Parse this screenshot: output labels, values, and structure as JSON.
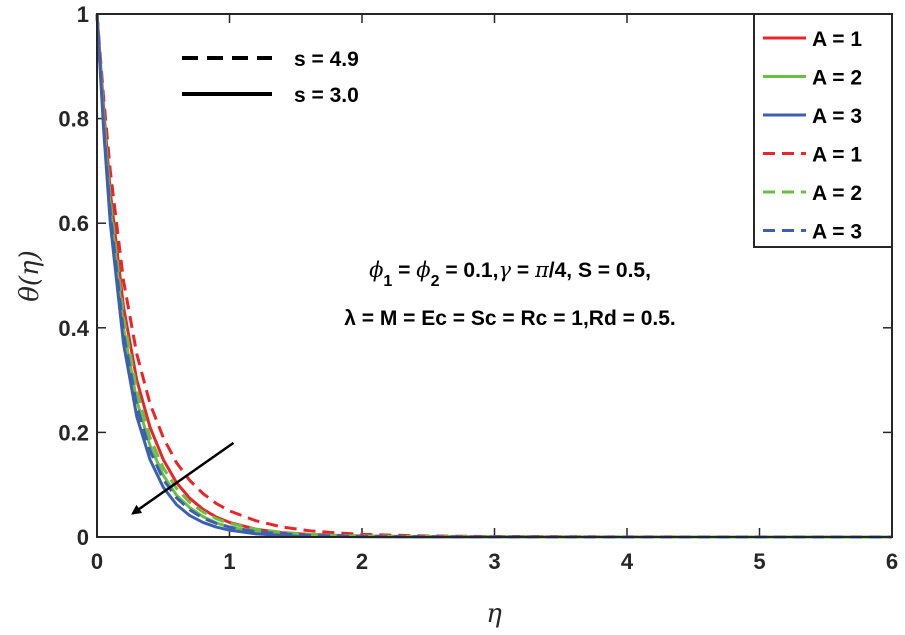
{
  "chart_data": {
    "type": "line",
    "xlabel": "η",
    "ylabel": "θ(η)",
    "xlim": [
      0,
      6
    ],
    "ylim": [
      0,
      1
    ],
    "xticks": [
      "0",
      "1",
      "2",
      "3",
      "4",
      "5",
      "6"
    ],
    "yticks": [
      "0",
      "0.2",
      "0.4",
      "0.6",
      "0.8",
      "1"
    ],
    "grid": false,
    "legend_position": "top-right",
    "colors": {
      "A1": "#e8262a",
      "A2": "#6cbd45",
      "A3": "#3d5fb2"
    },
    "series": [
      {
        "name": "A = 1",
        "style": "solid",
        "color": "#e8262a",
        "x": [
          0,
          0.05,
          0.1,
          0.2,
          0.3,
          0.4,
          0.5,
          0.6,
          0.7,
          0.8,
          0.9,
          1.0,
          1.2,
          1.4,
          1.6,
          1.8,
          2.0,
          2.5,
          3.0,
          4.0,
          5.0,
          6.0
        ],
        "y": [
          1.0,
          0.82,
          0.66,
          0.44,
          0.3,
          0.21,
          0.148,
          0.104,
          0.074,
          0.053,
          0.038,
          0.028,
          0.015,
          0.008,
          0.005,
          0.003,
          0.002,
          0.0005,
          0.0002,
          0,
          0,
          0
        ]
      },
      {
        "name": "A = 2",
        "style": "solid",
        "color": "#6cbd45",
        "x": [
          0,
          0.05,
          0.1,
          0.2,
          0.3,
          0.4,
          0.5,
          0.6,
          0.7,
          0.8,
          0.9,
          1.0,
          1.2,
          1.4,
          1.6,
          1.8,
          2.0,
          2.5,
          3.0,
          4.0,
          5.0,
          6.0
        ],
        "y": [
          1.0,
          0.8,
          0.63,
          0.4,
          0.26,
          0.175,
          0.118,
          0.08,
          0.056,
          0.039,
          0.027,
          0.019,
          0.01,
          0.005,
          0.003,
          0.002,
          0.001,
          0.0003,
          0.0001,
          0,
          0,
          0
        ]
      },
      {
        "name": "A = 3",
        "style": "solid",
        "color": "#3d5fb2",
        "x": [
          0,
          0.05,
          0.1,
          0.2,
          0.3,
          0.4,
          0.5,
          0.6,
          0.7,
          0.8,
          0.9,
          1.0,
          1.2,
          1.4,
          1.6,
          1.8,
          2.0,
          2.5,
          3.0,
          4.0,
          5.0,
          6.0
        ],
        "y": [
          1.0,
          0.78,
          0.6,
          0.37,
          0.23,
          0.148,
          0.095,
          0.062,
          0.041,
          0.028,
          0.019,
          0.013,
          0.006,
          0.003,
          0.002,
          0.001,
          0.0005,
          0.0001,
          0,
          0,
          0,
          0
        ]
      },
      {
        "name": "A = 1",
        "style": "dashed",
        "color": "#e8262a",
        "x": [
          0,
          0.05,
          0.1,
          0.2,
          0.3,
          0.4,
          0.5,
          0.6,
          0.7,
          0.8,
          0.9,
          1.0,
          1.2,
          1.4,
          1.6,
          1.8,
          2.0,
          2.5,
          3.0,
          4.0,
          5.0,
          6.0
        ],
        "y": [
          1.0,
          0.84,
          0.7,
          0.49,
          0.35,
          0.255,
          0.19,
          0.142,
          0.108,
          0.083,
          0.064,
          0.05,
          0.031,
          0.019,
          0.012,
          0.008,
          0.005,
          0.002,
          0.001,
          0.0001,
          0,
          0
        ]
      },
      {
        "name": "A = 2",
        "style": "dashed",
        "color": "#6cbd45",
        "x": [
          0,
          0.05,
          0.1,
          0.2,
          0.3,
          0.4,
          0.5,
          0.6,
          0.7,
          0.8,
          0.9,
          1.0,
          1.2,
          1.4,
          1.6,
          1.8,
          2.0,
          2.5,
          3.0,
          4.0,
          5.0,
          6.0
        ],
        "y": [
          1.0,
          0.81,
          0.645,
          0.42,
          0.28,
          0.19,
          0.132,
          0.093,
          0.066,
          0.048,
          0.035,
          0.026,
          0.015,
          0.009,
          0.005,
          0.003,
          0.002,
          0.0007,
          0.0002,
          0,
          0,
          0
        ]
      },
      {
        "name": "A = 3",
        "style": "dashed",
        "color": "#3d5fb2",
        "x": [
          0,
          0.05,
          0.1,
          0.2,
          0.3,
          0.4,
          0.5,
          0.6,
          0.7,
          0.8,
          0.9,
          1.0,
          1.2,
          1.4,
          1.6,
          1.8,
          2.0,
          2.5,
          3.0,
          4.0,
          5.0,
          6.0
        ],
        "y": [
          1.0,
          0.79,
          0.62,
          0.39,
          0.25,
          0.165,
          0.11,
          0.075,
          0.052,
          0.036,
          0.026,
          0.019,
          0.01,
          0.006,
          0.003,
          0.002,
          0.001,
          0.0004,
          0.0001,
          0,
          0,
          0
        ]
      }
    ],
    "line_style_legend": [
      {
        "label": "s = 4.9",
        "style": "dashed"
      },
      {
        "label": "s = 3.0",
        "style": "solid"
      }
    ],
    "annotation": {
      "line1": "ϕ₁ = ϕ₂ = 0.1,γ = π/4, S = 0.5,",
      "line2": "λ = M = Ec = Sc = Rc = 1,Rd = 0.5."
    },
    "arrow": {
      "from": [
        1.03,
        0.18
      ],
      "to": [
        0.27,
        0.045
      ]
    }
  }
}
